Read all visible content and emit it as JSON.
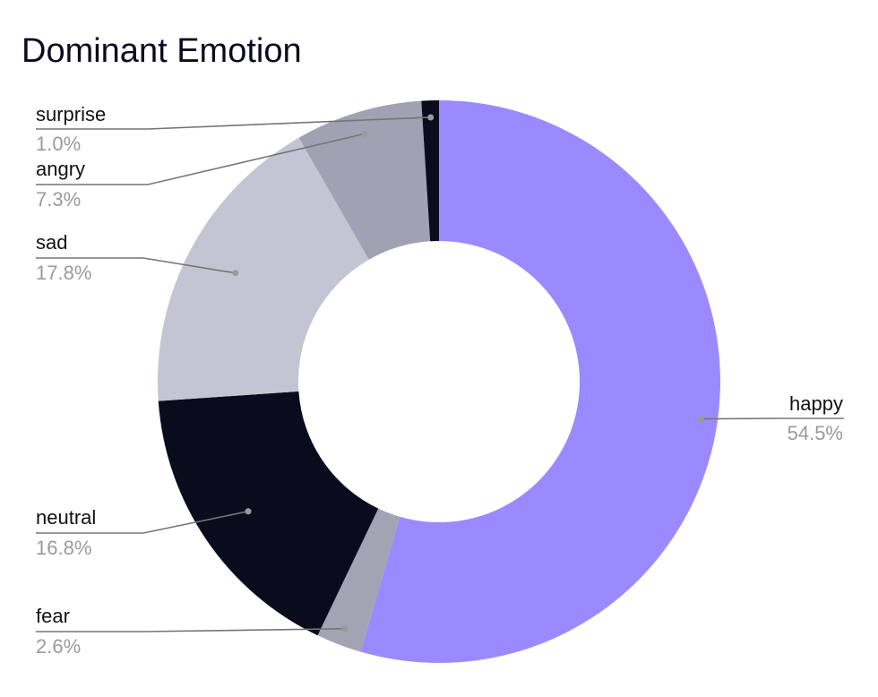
{
  "chart_data": {
    "type": "pie",
    "title": "Dominant Emotion",
    "donut": true,
    "slices": [
      {
        "label": "happy",
        "value": 54.5,
        "pct_label": "54.5%",
        "color": "#9b8aff"
      },
      {
        "label": "fear",
        "value": 2.6,
        "pct_label": "2.6%",
        "color": "#a3a3b3"
      },
      {
        "label": "neutral",
        "value": 16.8,
        "pct_label": "16.8%",
        "color": "#0b0b1e"
      },
      {
        "label": "sad",
        "value": 17.8,
        "pct_label": "17.8%",
        "color": "#c5c4d2"
      },
      {
        "label": "angry",
        "value": 7.3,
        "pct_label": "7.3%",
        "color": "#a1a1b3"
      },
      {
        "label": "surprise",
        "value": 1.0,
        "pct_label": "1.0%",
        "color": "#0b0b1e"
      }
    ]
  }
}
